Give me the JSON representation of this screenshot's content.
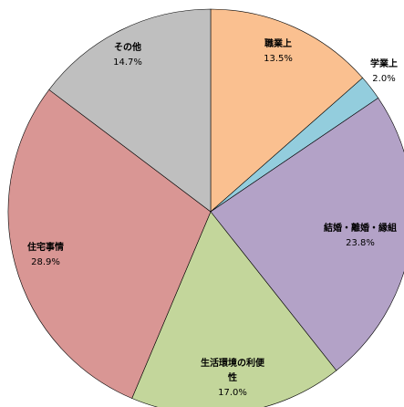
{
  "chart_data": {
    "type": "pie",
    "categories": [
      "職業上",
      "学業上",
      "結婚・離婚・縁組",
      "生活環境の利便性",
      "住宅事情",
      "その他"
    ],
    "values": [
      13.5,
      2.0,
      23.8,
      17.0,
      28.9,
      14.7
    ],
    "value_labels": [
      "13.5%",
      "2.0%",
      "23.8%",
      "17.0%",
      "28.9%",
      "14.7%"
    ],
    "colors": [
      "#fac090",
      "#93cddd",
      "#b3a2c7",
      "#c3d69b",
      "#d99694",
      "#bfbfbf"
    ]
  }
}
